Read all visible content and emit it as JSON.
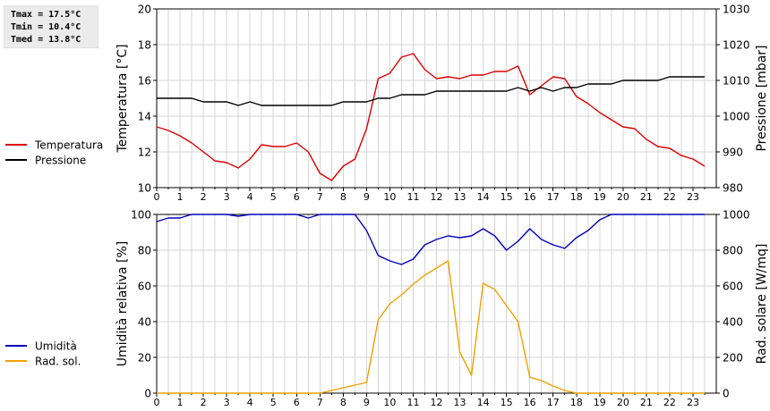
{
  "stats": {
    "tmax": "Tmax = 17.5°C",
    "tmin": "Tmin = 10.4°C",
    "tmed": "Tmed = 13.8°C"
  },
  "colors": {
    "temperature": "#dd0000",
    "pressure": "#000000",
    "humidity": "#0000bb",
    "radiation": "#f0a000",
    "grid": "#d4d4d4",
    "axis": "#000000"
  },
  "chart_data": [
    {
      "type": "line",
      "name": "temperature-pressure",
      "xlabel": "",
      "xlim": [
        0,
        24
      ],
      "xticks": [
        "0",
        "1",
        "2",
        "3",
        "4",
        "5",
        "6",
        "7",
        "8",
        "9",
        "10",
        "11",
        "12",
        "13",
        "14",
        "15",
        "16",
        "17",
        "18",
        "19",
        "20",
        "21",
        "22",
        "23"
      ],
      "ylabel": "Temperatura [°C]",
      "ylim": [
        10,
        20
      ],
      "yticks": [
        "10",
        "12",
        "14",
        "16",
        "18",
        "20"
      ],
      "y2label": "Pressione [mbar]",
      "y2lim": [
        980,
        1030
      ],
      "y2ticks": [
        "980",
        "990",
        "1000",
        "1010",
        "1020",
        "1030"
      ],
      "grid": true,
      "legend_position": "left",
      "series": [
        {
          "name": "Temperatura",
          "axis": "left",
          "color": "#dd0000",
          "x": [
            0,
            0.5,
            1,
            1.5,
            2,
            2.5,
            3,
            3.5,
            4,
            4.5,
            5,
            5.5,
            6,
            6.5,
            7,
            7.5,
            8,
            8.5,
            9,
            9.5,
            10,
            10.5,
            11,
            11.5,
            12,
            12.5,
            13,
            13.5,
            14,
            14.5,
            15,
            15.5,
            16,
            16.5,
            17,
            17.5,
            18,
            18.5,
            19,
            19.5,
            20,
            20.5,
            21,
            21.5,
            22,
            22.5,
            23,
            23.5
          ],
          "y": [
            13.4,
            13.2,
            12.9,
            12.5,
            12.0,
            11.5,
            11.4,
            11.1,
            11.6,
            12.4,
            12.3,
            12.3,
            12.5,
            12.0,
            10.8,
            10.4,
            11.2,
            11.6,
            13.3,
            16.1,
            16.4,
            17.3,
            17.5,
            16.6,
            16.1,
            16.2,
            16.1,
            16.3,
            16.3,
            16.5,
            16.5,
            16.8,
            15.2,
            15.7,
            16.2,
            16.1,
            15.1,
            14.7,
            14.2,
            13.8,
            13.4,
            13.3,
            12.7,
            12.3,
            12.2,
            11.8,
            11.6,
            11.2
          ]
        },
        {
          "name": "Pressione",
          "axis": "right",
          "color": "#000000",
          "x": [
            0,
            0.5,
            1,
            1.5,
            2,
            2.5,
            3,
            3.5,
            4,
            4.5,
            5,
            5.5,
            6,
            6.5,
            7,
            7.5,
            8,
            8.5,
            9,
            9.5,
            10,
            10.5,
            11,
            11.5,
            12,
            12.5,
            13,
            13.5,
            14,
            14.5,
            15,
            15.5,
            16,
            16.5,
            17,
            17.5,
            18,
            18.5,
            19,
            19.5,
            20,
            20.5,
            21,
            21.5,
            22,
            22.5,
            23,
            23.5
          ],
          "y": [
            1005,
            1005,
            1005,
            1005,
            1004,
            1004,
            1004,
            1003,
            1004,
            1003,
            1003,
            1003,
            1003,
            1003,
            1003,
            1003,
            1004,
            1004,
            1004,
            1005,
            1005,
            1006,
            1006,
            1006,
            1007,
            1007,
            1007,
            1007,
            1007,
            1007,
            1007,
            1008,
            1007,
            1008,
            1007,
            1008,
            1008,
            1009,
            1009,
            1009,
            1010,
            1010,
            1010,
            1010,
            1011,
            1011,
            1011,
            1011
          ]
        }
      ]
    },
    {
      "type": "line",
      "name": "humidity-radiation",
      "xlabel": "",
      "xlim": [
        0,
        24
      ],
      "xticks": [
        "0",
        "1",
        "2",
        "3",
        "4",
        "5",
        "6",
        "7",
        "8",
        "9",
        "10",
        "11",
        "12",
        "13",
        "14",
        "15",
        "16",
        "17",
        "18",
        "19",
        "20",
        "21",
        "22",
        "23"
      ],
      "ylabel": "Umidità relativa [%]",
      "ylim": [
        0,
        100
      ],
      "yticks": [
        "0",
        "20",
        "40",
        "60",
        "80",
        "100"
      ],
      "y2label": "Rad. solare [W/mq]",
      "y2lim": [
        0,
        1000
      ],
      "y2ticks": [
        "0",
        "200",
        "400",
        "600",
        "800",
        "1000"
      ],
      "grid": true,
      "legend_position": "left",
      "series": [
        {
          "name": "Umidità",
          "axis": "left",
          "color": "#0000bb",
          "x": [
            0,
            0.5,
            1,
            1.5,
            2,
            2.5,
            3,
            3.5,
            4,
            4.5,
            5,
            5.5,
            6,
            6.5,
            7,
            7.5,
            8,
            8.5,
            9,
            9.5,
            10,
            10.5,
            11,
            11.5,
            12,
            12.5,
            13,
            13.5,
            14,
            14.5,
            15,
            15.5,
            16,
            16.5,
            17,
            17.5,
            18,
            18.5,
            19,
            19.5,
            20,
            20.5,
            21,
            21.5,
            22,
            22.5,
            23,
            23.5
          ],
          "y": [
            96,
            98,
            98,
            100,
            100,
            100,
            100,
            99,
            100,
            100,
            100,
            100,
            100,
            98,
            100,
            100,
            100,
            100,
            91,
            77,
            74,
            72,
            75,
            83,
            86,
            88,
            87,
            88,
            92,
            88,
            80,
            85,
            92,
            86,
            83,
            81,
            87,
            91,
            97,
            100,
            100,
            100,
            100,
            100,
            100,
            100,
            100,
            100
          ]
        },
        {
          "name": "Rad. sol.",
          "axis": "right",
          "color": "#f0a000",
          "x": [
            0,
            0.5,
            1,
            1.5,
            2,
            2.5,
            3,
            3.5,
            4,
            4.5,
            5,
            5.5,
            6,
            6.5,
            7,
            7.5,
            8,
            8.5,
            9,
            9.5,
            10,
            10.5,
            11,
            11.5,
            12,
            12.5,
            13,
            13.5,
            14,
            14.5,
            15,
            15.5,
            16,
            16.5,
            17,
            17.5,
            18,
            18.5,
            19,
            19.5,
            20,
            20.5,
            21,
            21.5,
            22,
            22.5,
            23,
            23.5
          ],
          "y": [
            0,
            0,
            0,
            0,
            0,
            0,
            0,
            0,
            0,
            0,
            0,
            0,
            0,
            0,
            0,
            15,
            30,
            45,
            60,
            410,
            500,
            550,
            610,
            660,
            700,
            740,
            230,
            100,
            615,
            580,
            490,
            400,
            90,
            70,
            40,
            15,
            0,
            0,
            0,
            0,
            0,
            0,
            0,
            0,
            0,
            0,
            0,
            0
          ]
        }
      ]
    }
  ]
}
